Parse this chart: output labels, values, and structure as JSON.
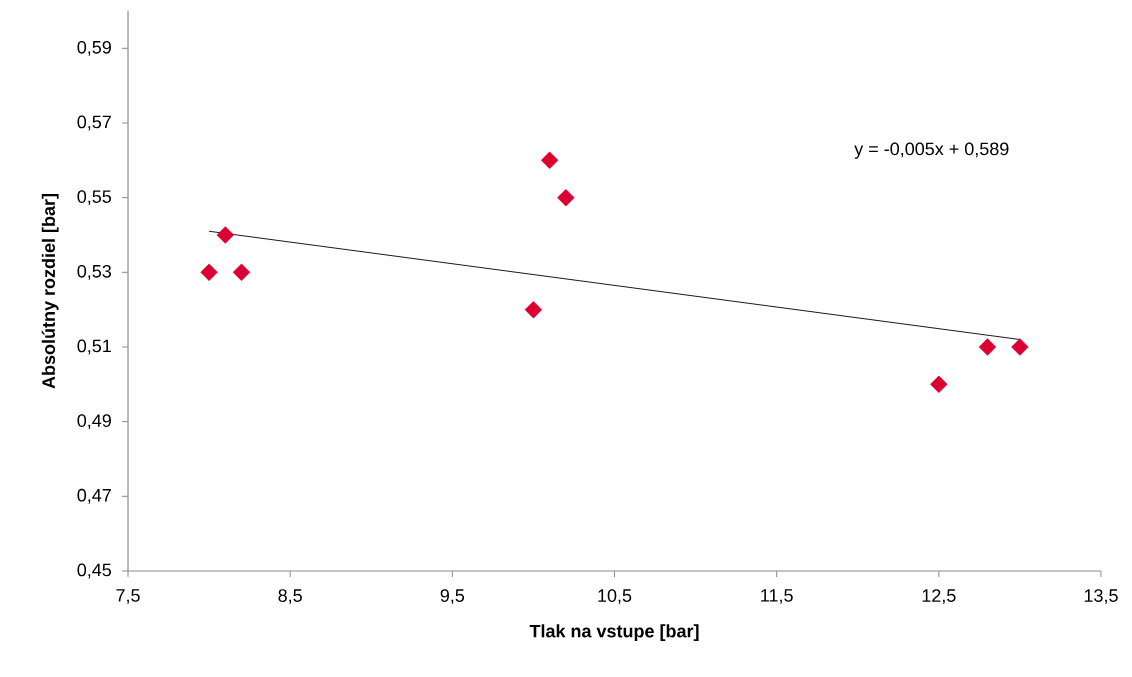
{
  "chart_data": {
    "type": "scatter",
    "xlabel": "Tlak na vstupe [bar]",
    "ylabel": "Absolútny rozdiel [bar]",
    "xlim": [
      7.5,
      13.5
    ],
    "ylim": [
      0.45,
      0.6
    ],
    "xticks": [
      {
        "value": 7.5,
        "label": "7,5"
      },
      {
        "value": 8.5,
        "label": "8,5"
      },
      {
        "value": 9.5,
        "label": "9,5"
      },
      {
        "value": 10.5,
        "label": "10,5"
      },
      {
        "value": 11.5,
        "label": "11,5"
      },
      {
        "value": 12.5,
        "label": "12,5"
      },
      {
        "value": 13.5,
        "label": "13,5"
      }
    ],
    "yticks": [
      {
        "value": 0.45,
        "label": "0,45"
      },
      {
        "value": 0.47,
        "label": "0,47"
      },
      {
        "value": 0.49,
        "label": "0,49"
      },
      {
        "value": 0.51,
        "label": "0,51"
      },
      {
        "value": 0.53,
        "label": "0,53"
      },
      {
        "value": 0.55,
        "label": "0,55"
      },
      {
        "value": 0.57,
        "label": "0,57"
      },
      {
        "value": 0.59,
        "label": "0,59"
      }
    ],
    "series": [
      {
        "color": "#dc0032",
        "marker": "diamond",
        "x": [
          8.0,
          8.1,
          8.2,
          10.0,
          10.1,
          10.2,
          12.5,
          12.8,
          13.0
        ],
        "values": [
          0.53,
          0.54,
          0.53,
          0.52,
          0.56,
          0.55,
          0.5,
          0.51,
          0.51
        ]
      },
      {
        "type": "line",
        "color": "#000000",
        "marker": "none",
        "line_style": "solid",
        "x": [
          8.0,
          13.0
        ],
        "values": [
          0.541,
          0.512
        ]
      }
    ],
    "annotations": [
      "y = -0,005x + 0,589"
    ]
  }
}
